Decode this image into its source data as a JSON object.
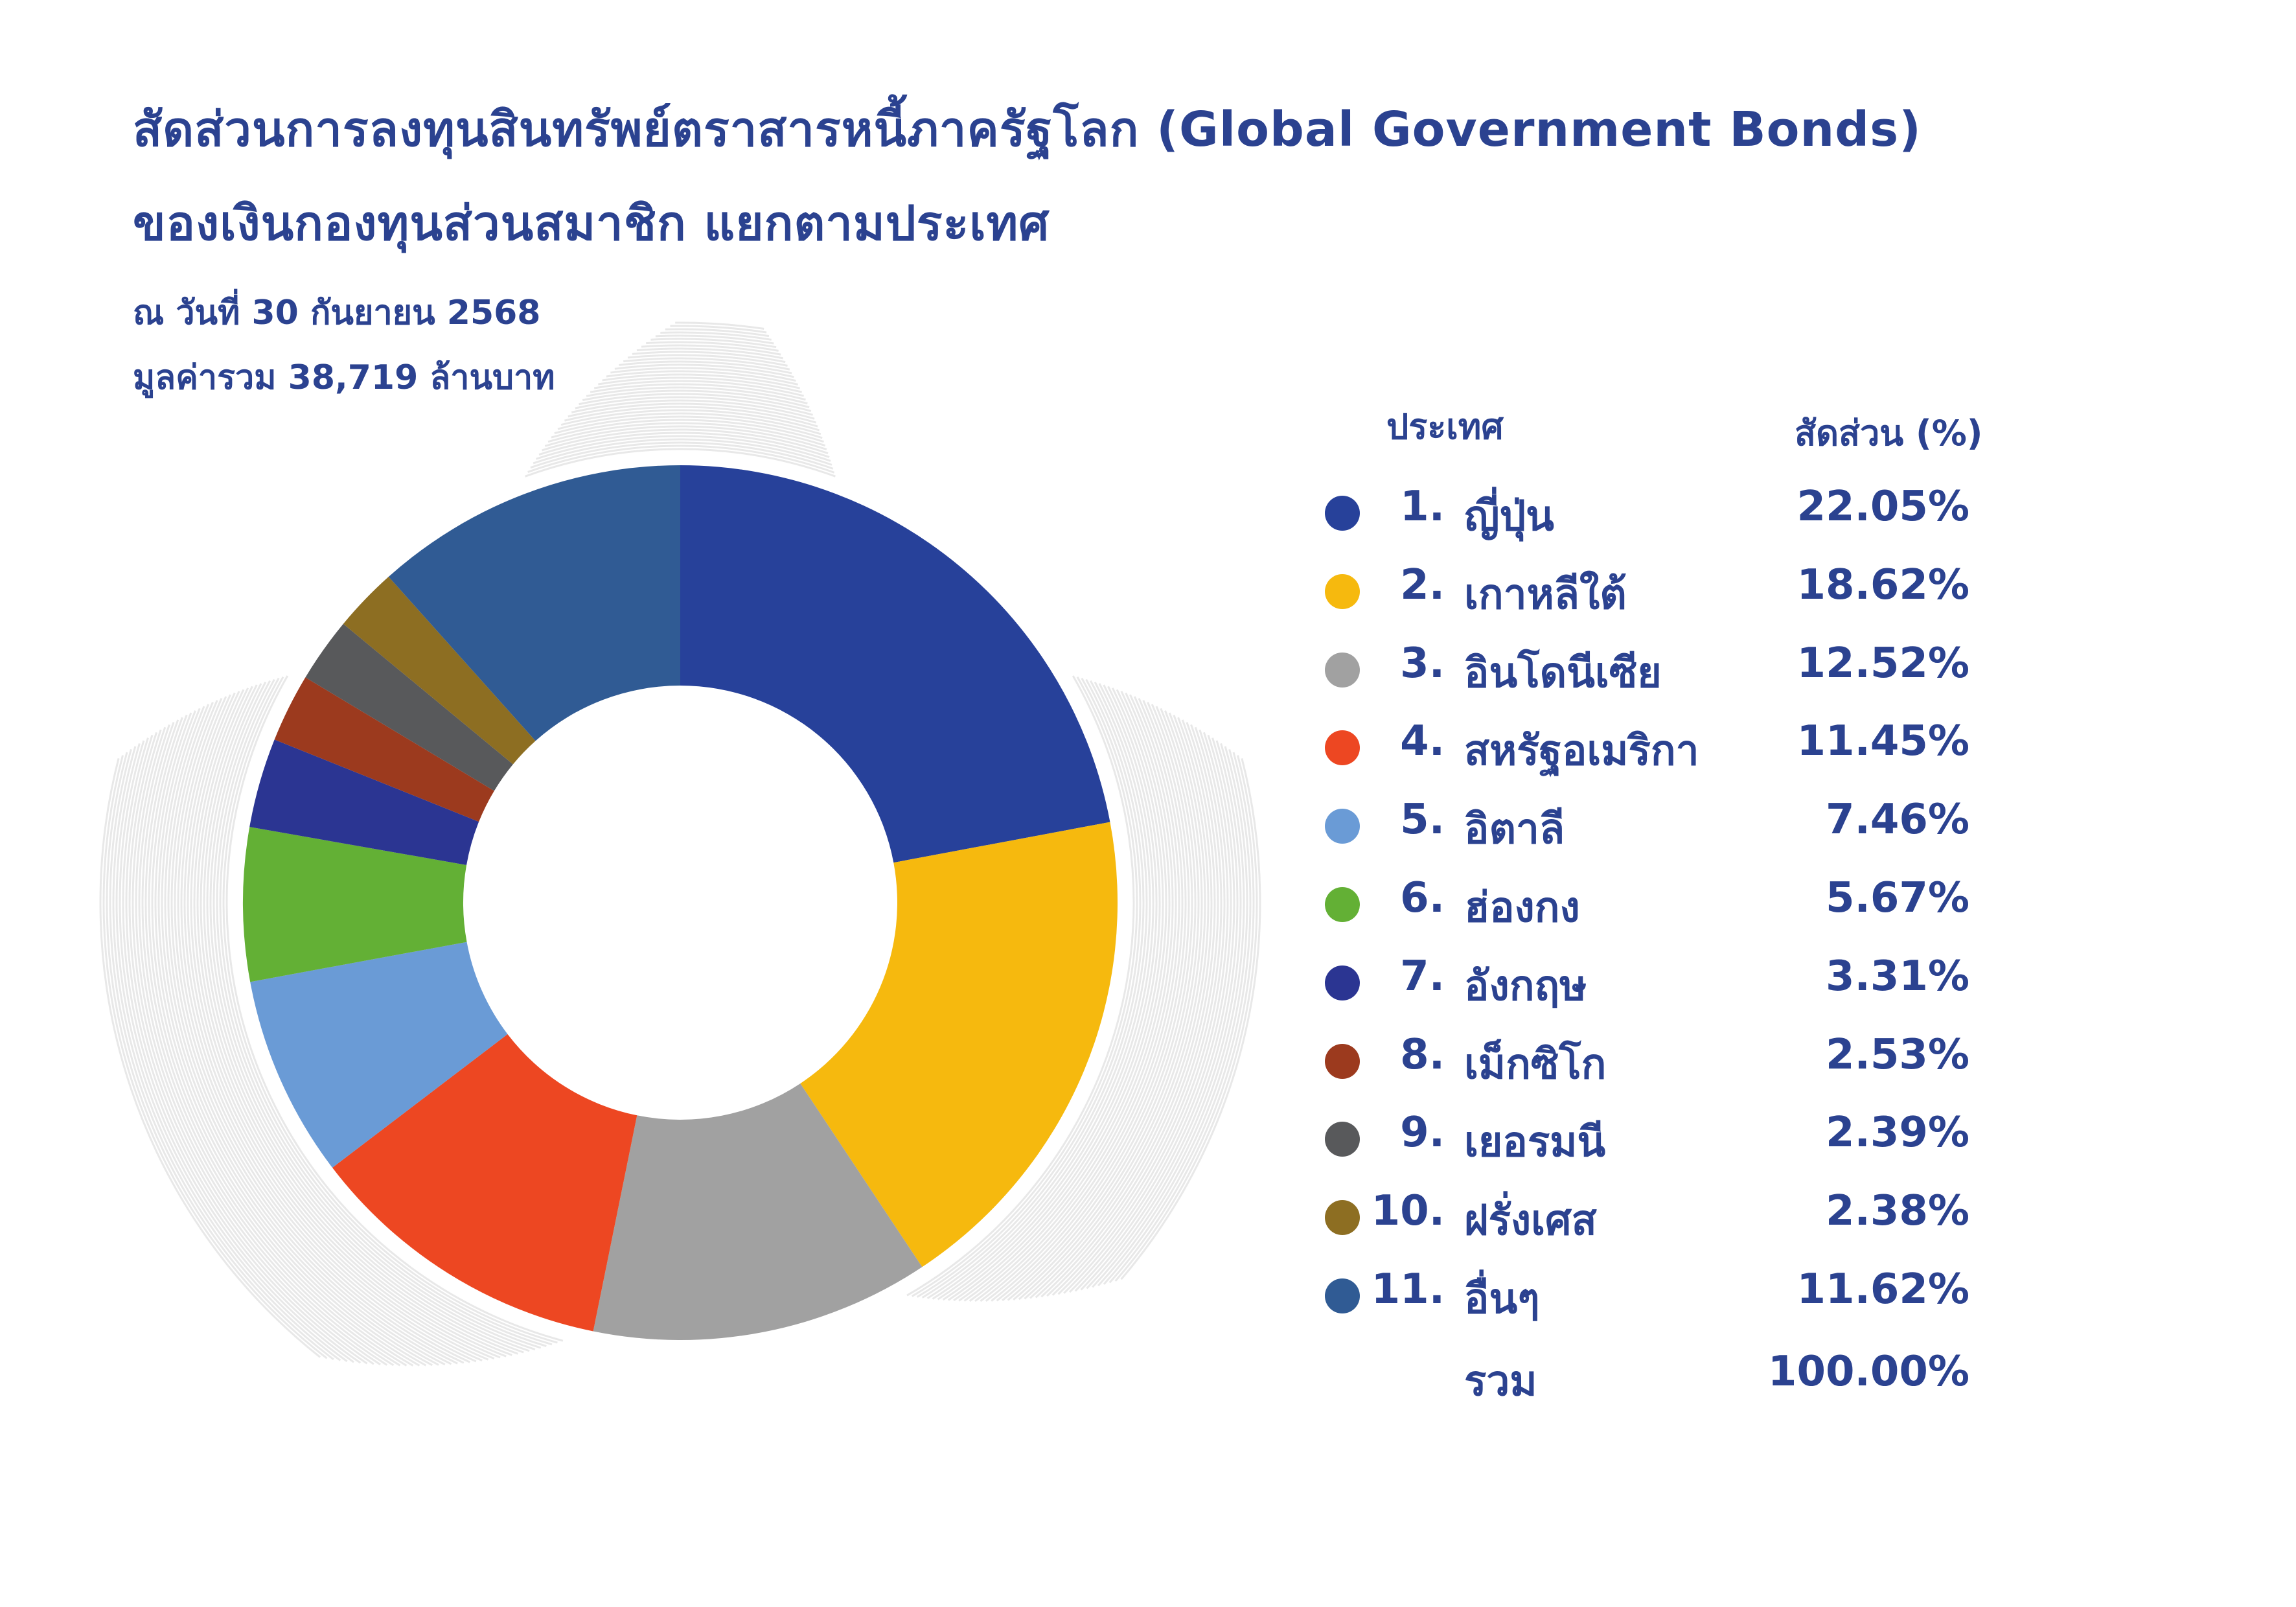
{
  "title_line1": "สัดส่วนการลงทุนสินทรัพย์ตราสารหนี้ภาครัฐโลก (Global Government Bonds)",
  "title_line2": "ของเงินกองทุนส่วนสมาชิก แยกตามประเทศ",
  "subtitle_date": "ณ วันที่ 30 กันยายน 2568",
  "subtitle_total": "มูลค่ารวม 38,719 ล้านบาท",
  "table_header": {
    "country": "ประเทศ",
    "share": "สัดส่วน (%)"
  },
  "total_row": {
    "label": "รวม",
    "value": "100.00%"
  },
  "chart_data": {
    "type": "pie",
    "donut": true,
    "title": "สัดส่วนการลงทุนสินทรัพย์ตราสารหนี้ภาครัฐโลก (Global Government Bonds) ของเงินกองทุนส่วนสมาชิก แยกตามประเทศ",
    "legend_placement": "right",
    "slices": [
      {
        "rank": "1.",
        "label": "ญี่ปุ่น",
        "value": 22.05,
        "display": "22.05%",
        "color": "#27419a"
      },
      {
        "rank": "2.",
        "label": "เกาหลีใต้",
        "value": 18.62,
        "display": "18.62%",
        "color": "#f6b90e"
      },
      {
        "rank": "3.",
        "label": "อินโดนีเซีย",
        "value": 12.52,
        "display": "12.52%",
        "color": "#a1a1a1"
      },
      {
        "rank": "4.",
        "label": "สหรัฐอเมริกา",
        "value": 11.45,
        "display": "11.45%",
        "color": "#ed4722"
      },
      {
        "rank": "5.",
        "label": "อิตาลี",
        "value": 7.46,
        "display": "7.46%",
        "color": "#6a9bd6"
      },
      {
        "rank": "6.",
        "label": "ฮ่องกง",
        "value": 5.67,
        "display": "5.67%",
        "color": "#63b035"
      },
      {
        "rank": "7.",
        "label": "อังกฤษ",
        "value": 3.31,
        "display": "3.31%",
        "color": "#2b3592"
      },
      {
        "rank": "8.",
        "label": "เม็กซิโก",
        "value": 2.53,
        "display": "2.53%",
        "color": "#9c3a1e"
      },
      {
        "rank": "9.",
        "label": "เยอรมนี",
        "value": 2.39,
        "display": "2.39%",
        "color": "#58595b"
      },
      {
        "rank": "10.",
        "label": "ฝรั่งเศส",
        "value": 2.38,
        "display": "2.38%",
        "color": "#8d6e22"
      },
      {
        "rank": "11.",
        "label": "อื่นๆ",
        "value": 11.62,
        "display": "11.62%",
        "color": "#305b94"
      }
    ]
  }
}
